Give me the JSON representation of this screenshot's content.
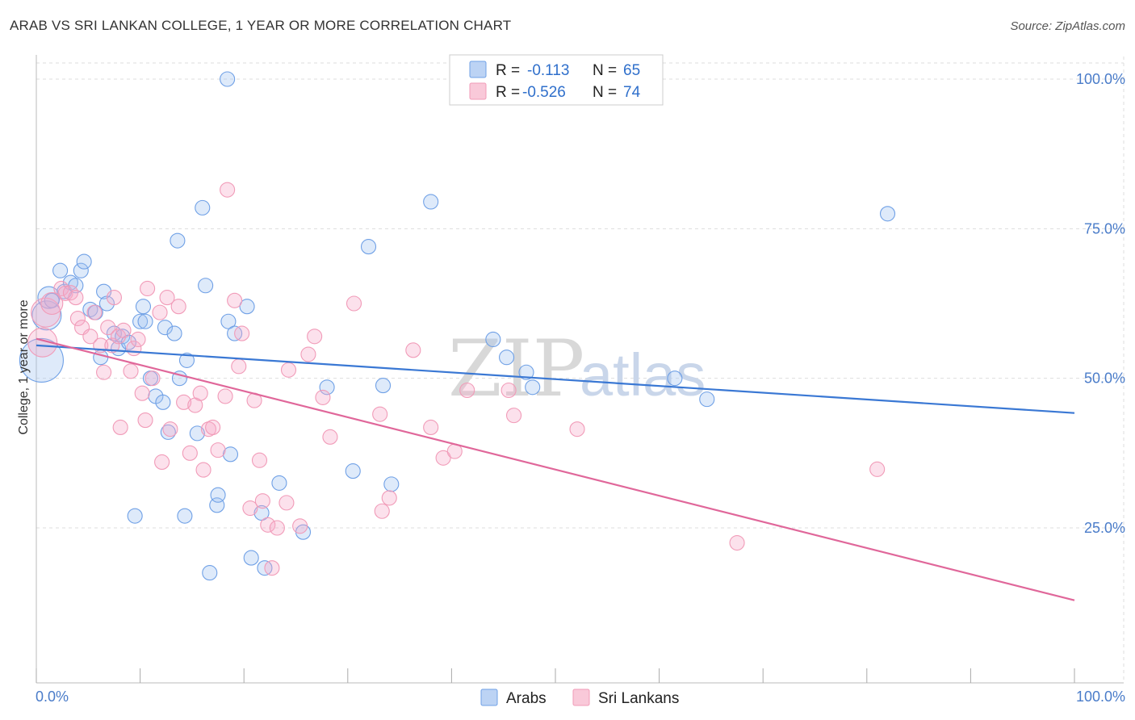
{
  "title": "ARAB VS SRI LANKAN COLLEGE, 1 YEAR OR MORE CORRELATION CHART",
  "source": "Source: ZipAtlas.com",
  "watermark": {
    "zip": "ZIP",
    "atlas": "atlas"
  },
  "legend": {
    "r_label": "R =",
    "n_label": "N =",
    "rows": [
      {
        "r": "-0.113",
        "n": "65",
        "color": "#6fa0e6"
      },
      {
        "r": "-0.526",
        "n": "74",
        "color": "#f19bb8"
      }
    ]
  },
  "bottom_legend": [
    "Arabs",
    "Sri Lankans"
  ],
  "chart_data": {
    "type": "scatter",
    "title": "ARAB VS SRI LANKAN COLLEGE, 1 YEAR OR MORE CORRELATION CHART",
    "xlabel": "",
    "ylabel": "College, 1 year or more",
    "xlim": [
      0,
      100
    ],
    "ylim": [
      0,
      102
    ],
    "x_tick_labels": [
      "0.0%",
      "100.0%"
    ],
    "y_tick_labels": [
      "25.0%",
      "50.0%",
      "75.0%",
      "100.0%"
    ],
    "y_ticks": [
      25,
      50,
      75,
      100
    ],
    "grid": true,
    "legend_position": "top-center",
    "series": [
      {
        "name": "Arabs",
        "color": "#6fa0e6",
        "trend": {
          "x": [
            0,
            100
          ],
          "y": [
            55.5,
            44.2
          ],
          "color": "#3a78d4"
        },
        "points": [
          [
            0.5,
            53,
            3
          ],
          [
            1,
            60.5,
            2
          ],
          [
            1.2,
            63.5,
            1.5
          ],
          [
            1.5,
            63,
            1
          ],
          [
            2.3,
            68,
            1
          ],
          [
            2.7,
            64.5,
            1
          ],
          [
            3.3,
            66,
            1
          ],
          [
            3.8,
            65.5,
            1
          ],
          [
            4.3,
            68,
            1
          ],
          [
            4.6,
            69.5,
            1
          ],
          [
            5.2,
            61.5,
            1
          ],
          [
            5.7,
            61,
            1
          ],
          [
            6.2,
            53.5,
            1
          ],
          [
            6.5,
            64.5,
            1
          ],
          [
            6.8,
            62.5,
            1
          ],
          [
            7.5,
            57.5,
            1
          ],
          [
            7.9,
            55,
            1
          ],
          [
            8.3,
            57,
            1
          ],
          [
            8.9,
            56,
            1
          ],
          [
            9.5,
            27,
            1
          ],
          [
            10.3,
            62,
            1
          ],
          [
            10,
            59.5,
            1
          ],
          [
            10.5,
            59.5,
            1
          ],
          [
            11,
            50,
            1
          ],
          [
            11.5,
            47,
            1
          ],
          [
            12.2,
            46,
            1
          ],
          [
            12.4,
            58.5,
            1
          ],
          [
            12.7,
            41,
            1
          ],
          [
            13.3,
            57.5,
            1
          ],
          [
            13.6,
            73,
            1
          ],
          [
            13.8,
            50,
            1
          ],
          [
            14.3,
            27,
            1
          ],
          [
            14.5,
            53,
            1
          ],
          [
            15.5,
            40.8,
            1
          ],
          [
            16,
            78.5,
            1
          ],
          [
            16.3,
            65.5,
            1
          ],
          [
            16.7,
            17.5,
            1
          ],
          [
            17.4,
            28.8,
            1
          ],
          [
            17.5,
            30.5,
            1
          ],
          [
            18.4,
            100,
            1
          ],
          [
            18.5,
            59.5,
            1
          ],
          [
            18.7,
            37.3,
            1
          ],
          [
            19.1,
            57.5,
            1
          ],
          [
            20.3,
            62,
            1
          ],
          [
            20.7,
            20,
            1
          ],
          [
            21.7,
            27.5,
            1
          ],
          [
            22,
            18.3,
            1
          ],
          [
            23.4,
            32.5,
            1
          ],
          [
            25.7,
            24.3,
            1
          ],
          [
            28,
            48.5,
            1
          ],
          [
            30.5,
            34.5,
            1
          ],
          [
            32,
            72,
            1
          ],
          [
            33.4,
            48.8,
            1
          ],
          [
            34.2,
            32.3,
            1
          ],
          [
            38,
            79.5,
            1
          ],
          [
            44,
            56.5,
            1
          ],
          [
            45.3,
            53.5,
            1
          ],
          [
            47.2,
            51,
            1
          ],
          [
            47.8,
            48.5,
            1
          ],
          [
            61.5,
            50,
            1
          ],
          [
            64.6,
            46.5,
            1
          ],
          [
            82,
            77.5,
            1
          ]
        ]
      },
      {
        "name": "Sri Lankans",
        "color": "#f19bb8",
        "trend": {
          "x": [
            0,
            100
          ],
          "y": [
            56.6,
            12.9
          ],
          "color": "#e0679a"
        },
        "points": [
          [
            0.6,
            56,
            2
          ],
          [
            0.9,
            61,
            2
          ],
          [
            1.5,
            62.5,
            1.5
          ],
          [
            2.4,
            65,
            1
          ],
          [
            2.8,
            64.2,
            1
          ],
          [
            3.3,
            64.3,
            1
          ],
          [
            3.8,
            63.5,
            1
          ],
          [
            4,
            60,
            1
          ],
          [
            4.4,
            58.5,
            1
          ],
          [
            5.2,
            57,
            1
          ],
          [
            5.6,
            61,
            1
          ],
          [
            6.2,
            55.5,
            1
          ],
          [
            6.5,
            51,
            1
          ],
          [
            6.9,
            58.5,
            1
          ],
          [
            7.3,
            55.5,
            1
          ],
          [
            7.5,
            63.5,
            1
          ],
          [
            7.9,
            57,
            1
          ],
          [
            8.1,
            41.8,
            1
          ],
          [
            8.4,
            58,
            1
          ],
          [
            9.1,
            51.2,
            1
          ],
          [
            9.4,
            55,
            1
          ],
          [
            9.8,
            56.5,
            1
          ],
          [
            10.2,
            47.5,
            1
          ],
          [
            10.5,
            43,
            1
          ],
          [
            10.7,
            65,
            1
          ],
          [
            11.2,
            50,
            1
          ],
          [
            11.9,
            61,
            1
          ],
          [
            12.1,
            36,
            1
          ],
          [
            12.6,
            63.5,
            1
          ],
          [
            12.9,
            41.5,
            1
          ],
          [
            13.7,
            62,
            1
          ],
          [
            14.2,
            46,
            1
          ],
          [
            14.8,
            37.5,
            1
          ],
          [
            15.3,
            45.5,
            1
          ],
          [
            15.8,
            47.5,
            1
          ],
          [
            16.1,
            34.7,
            1
          ],
          [
            16.6,
            41.5,
            1
          ],
          [
            17,
            41.8,
            1
          ],
          [
            17.5,
            38,
            1
          ],
          [
            18.2,
            47,
            1
          ],
          [
            18.4,
            81.5,
            1
          ],
          [
            19.1,
            63,
            1
          ],
          [
            19.5,
            52,
            1
          ],
          [
            19.8,
            57.5,
            1
          ],
          [
            20.6,
            28.3,
            1
          ],
          [
            21,
            46.3,
            1
          ],
          [
            21.5,
            36.3,
            1
          ],
          [
            21.8,
            29.5,
            1
          ],
          [
            22.3,
            25.5,
            1
          ],
          [
            22.7,
            18.3,
            1
          ],
          [
            23.2,
            25,
            1
          ],
          [
            24.1,
            29.2,
            1
          ],
          [
            24.3,
            51.4,
            1
          ],
          [
            25.4,
            25.3,
            1
          ],
          [
            26.2,
            54,
            1
          ],
          [
            26.8,
            57,
            1
          ],
          [
            27.6,
            46.8,
            1
          ],
          [
            28.3,
            40.2,
            1
          ],
          [
            30.6,
            62.5,
            1
          ],
          [
            33.1,
            44,
            1
          ],
          [
            33.3,
            27.8,
            1
          ],
          [
            34,
            30,
            1
          ],
          [
            36.3,
            54.7,
            1
          ],
          [
            38,
            41.8,
            1
          ],
          [
            39.2,
            36.7,
            1
          ],
          [
            40.3,
            37.8,
            1
          ],
          [
            41.5,
            48,
            1
          ],
          [
            45.5,
            48,
            1
          ],
          [
            46,
            43.8,
            1
          ],
          [
            52.1,
            41.5,
            1
          ],
          [
            67.5,
            22.5,
            1
          ],
          [
            81,
            34.8,
            1
          ]
        ]
      }
    ]
  }
}
